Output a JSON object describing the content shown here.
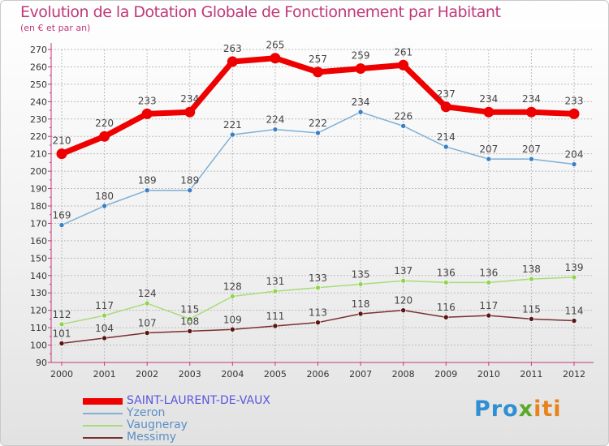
{
  "title": "Evolution de la Dotation Globale de Fonctionnement par Habitant",
  "subtitle": "(en € et par an)",
  "logo": {
    "part1": "Pro",
    "part2": "x",
    "part3": "iti"
  },
  "colors": {
    "title": "#c0397a",
    "axis": "#c0397a",
    "grid": "#bdbdbd"
  },
  "chart_data": {
    "type": "line",
    "x": [
      "2000",
      "2001",
      "2002",
      "2003",
      "2004",
      "2005",
      "2006",
      "2007",
      "2008",
      "2009",
      "2010",
      "2011",
      "2012"
    ],
    "ylim": [
      90,
      270
    ],
    "yticks": [
      90,
      100,
      110,
      120,
      130,
      140,
      150,
      160,
      170,
      180,
      190,
      200,
      210,
      220,
      230,
      240,
      250,
      260,
      270
    ],
    "grid": true,
    "legend_position": "bottom-left",
    "series": [
      {
        "name": "SAINT-LAURENT-DE-VAUX",
        "values": [
          210,
          220,
          233,
          234,
          263,
          265,
          257,
          259,
          261,
          237,
          234,
          234,
          233
        ],
        "labels": [
          "210",
          "220",
          "233",
          "234",
          "263",
          "265",
          "257",
          "259",
          "261",
          "237",
          "234",
          "234",
          "233"
        ],
        "color": "#ee0000",
        "legend_color": "#5a55e0",
        "width": 7,
        "marker_fill": "#ee0000"
      },
      {
        "name": "Yzeron",
        "values": [
          169,
          180,
          189,
          189,
          221,
          224,
          222,
          234,
          226,
          214,
          207,
          207,
          204
        ],
        "labels": [
          "169",
          "180",
          "189",
          "189",
          "221",
          "224",
          "222",
          "234",
          "226",
          "214",
          "207",
          "207",
          "204"
        ],
        "color": "#7fb0d6",
        "legend_color": "#5a8fc4",
        "width": 1.5,
        "marker_fill": "#3a7fc4"
      },
      {
        "name": "Vaugneray",
        "values": [
          112,
          117,
          124,
          115,
          128,
          131,
          133,
          135,
          137,
          136,
          136,
          138,
          139
        ],
        "labels": [
          "112",
          "117",
          "124",
          "115",
          "128",
          "131",
          "133",
          "135",
          "137",
          "136",
          "136",
          "138",
          "139"
        ],
        "color": "#a8dc7a",
        "legend_color": "#5a8fc4",
        "width": 1.5,
        "marker_fill": "#8fd64f"
      },
      {
        "name": "Messimy",
        "values": [
          101,
          104,
          107,
          108,
          109,
          111,
          113,
          118,
          120,
          116,
          117,
          115,
          114
        ],
        "labels": [
          "101",
          "104",
          "107",
          "108",
          "109",
          "111",
          "113",
          "118",
          "120",
          "116",
          "117",
          "115",
          "114"
        ],
        "color": "#7a2f2f",
        "legend_color": "#5a8fc4",
        "width": 1.5,
        "marker_fill": "#5a1414"
      }
    ]
  }
}
